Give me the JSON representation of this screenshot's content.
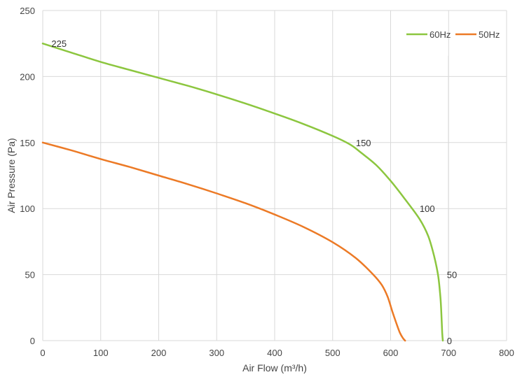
{
  "chart_data": {
    "type": "line",
    "title": "",
    "xlabel": "Air Flow  (m³/h)",
    "ylabel": "Air Pressure  (Pa)",
    "xlim": [
      0,
      800
    ],
    "ylim": [
      0,
      250
    ],
    "xticks": [
      0,
      100,
      200,
      300,
      400,
      500,
      600,
      700,
      800
    ],
    "yticks": [
      0,
      50,
      100,
      150,
      200,
      250
    ],
    "grid": true,
    "legend_position": "top-right",
    "series": [
      {
        "name": "60Hz",
        "color": "#8cc63f",
        "x": [
          0,
          50,
          100,
          150,
          200,
          250,
          300,
          350,
          400,
          450,
          500,
          530,
          550,
          575,
          600,
          625,
          650,
          665,
          675,
          682,
          686,
          688,
          689,
          690
        ],
        "y": [
          225,
          218,
          211,
          205,
          199,
          193,
          186.5,
          179.5,
          172,
          164,
          155,
          148.5,
          142,
          133,
          121,
          107,
          92,
          79,
          64,
          49,
          32,
          16,
          6,
          0
        ]
      },
      {
        "name": "50Hz",
        "color": "#ec7a26",
        "x": [
          0,
          50,
          100,
          150,
          200,
          250,
          300,
          350,
          400,
          450,
          500,
          540,
          570,
          585,
          595,
          603,
          610,
          616,
          621,
          625
        ],
        "y": [
          150,
          144,
          137.5,
          131.5,
          125,
          118.5,
          111.5,
          104,
          95.5,
          86,
          74.5,
          62.5,
          50,
          42,
          33,
          22,
          13,
          6,
          2,
          0
        ]
      }
    ],
    "annotations": [
      {
        "text": "225",
        "x": 15,
        "y": 225
      },
      {
        "text": "150",
        "x": 540,
        "y": 150
      },
      {
        "text": "100",
        "x": 650,
        "y": 100
      },
      {
        "text": "50",
        "x": 697,
        "y": 50
      },
      {
        "text": "0",
        "x": 697,
        "y": 0
      }
    ]
  }
}
